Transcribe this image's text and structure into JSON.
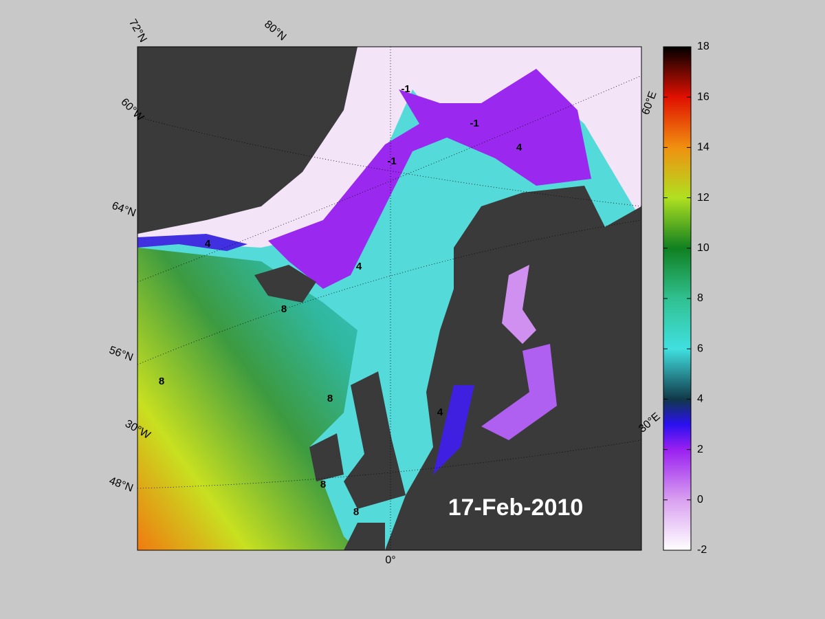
{
  "map": {
    "date_label": "17-Feb-2010",
    "graticule_labels": [
      "72°N",
      "80°N",
      "60°W",
      "64°N",
      "56°N",
      "30°W",
      "48°N",
      "0°",
      "30°E",
      "60°E"
    ],
    "contour_labels": [
      8,
      8,
      8,
      8,
      8,
      4,
      4,
      4,
      4,
      -1,
      -1,
      -1
    ]
  },
  "colorbar": {
    "lim": [
      -2,
      18
    ],
    "ticks": [
      -2,
      0,
      2,
      4,
      6,
      8,
      10,
      12,
      14,
      16,
      18
    ]
  }
}
